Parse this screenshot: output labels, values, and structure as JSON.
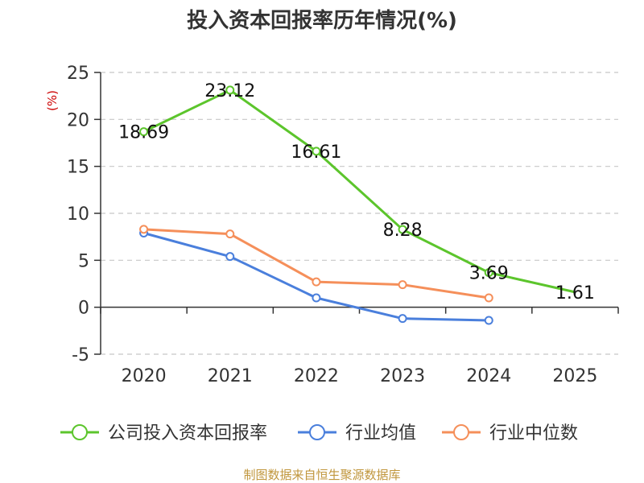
{
  "chart_data": {
    "type": "line",
    "title": "投入资本回报率历年情况(%)",
    "ylabel": "(%)",
    "categories": [
      "2020",
      "2021",
      "2022",
      "2023",
      "2024",
      "2025"
    ],
    "ylim": [
      -5,
      25
    ],
    "yticks": [
      -5,
      0,
      5,
      10,
      15,
      20,
      25
    ],
    "grid": true,
    "legend_position": "bottom",
    "series": [
      {
        "name": "公司投入资本回报率",
        "color": "#5cc52c",
        "values": [
          18.69,
          23.12,
          16.61,
          8.28,
          3.69,
          1.61
        ],
        "labels": [
          "18.69",
          "23.12",
          "16.61",
          "8.28",
          "3.69",
          "1.61"
        ]
      },
      {
        "name": "行业均值",
        "color": "#4a7fdc",
        "values": [
          7.9,
          5.4,
          1.0,
          -1.2,
          -1.4,
          null
        ]
      },
      {
        "name": "行业中位数",
        "color": "#f58f5a",
        "values": [
          8.3,
          7.8,
          2.7,
          2.4,
          1.0,
          null
        ]
      }
    ],
    "source": "制图数据来自恒生聚源数据库"
  }
}
